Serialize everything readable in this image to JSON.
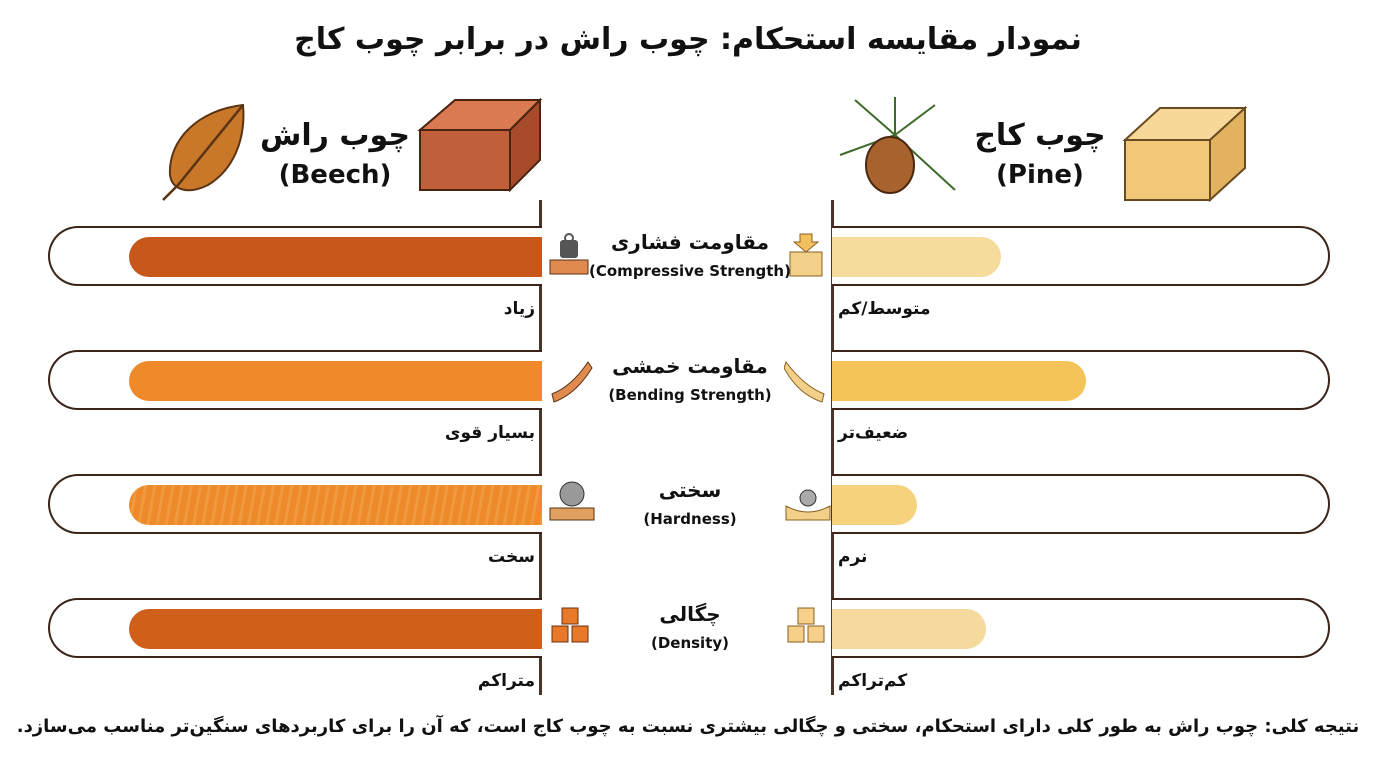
{
  "chart_data": {
    "type": "bar",
    "title": "نمودار مقایسه استحکام: چوب راش در برابر چوب کاج",
    "series": [
      {
        "name": "چوب راش",
        "subname": "(Beech)",
        "values": [
          84,
          84,
          84,
          84
        ],
        "levels": [
          "زیاد",
          "بسیار قوی",
          "سخت",
          "متراکم"
        ],
        "colors": [
          "#c8581a",
          "#ee8a2a",
          "#ee8a2a",
          "#cf5f1a"
        ]
      },
      {
        "name": "چوب کاج",
        "subname": "(Pine)",
        "values": [
          34,
          51,
          17,
          31
        ],
        "levels": [
          "متوسط/کم",
          "ضعیف‌تر",
          "نرم",
          "کم‌تراکم"
        ],
        "colors": [
          "#f6dc9c",
          "#f5c458",
          "#f7d27c",
          "#f6d99c"
        ]
      }
    ],
    "categories": [
      {
        "fa": "مقاومت فشاری",
        "en": "(Compressive Strength)"
      },
      {
        "fa": "مقاومت خمشی",
        "en": "(Bending Strength)"
      },
      {
        "fa": "سختی",
        "en": "(Hardness)"
      },
      {
        "fa": "چگالی",
        "en": "(Density)"
      }
    ],
    "ylim": [
      0,
      100
    ]
  },
  "conclusion": "نتیجه کلی: چوب راش به طور کلی دارای استحکام، سختی و چگالی بیشتری نسبت به چوب کاج است، که آن را برای کاربردهای سنگین‌تر مناسب می‌سازد."
}
